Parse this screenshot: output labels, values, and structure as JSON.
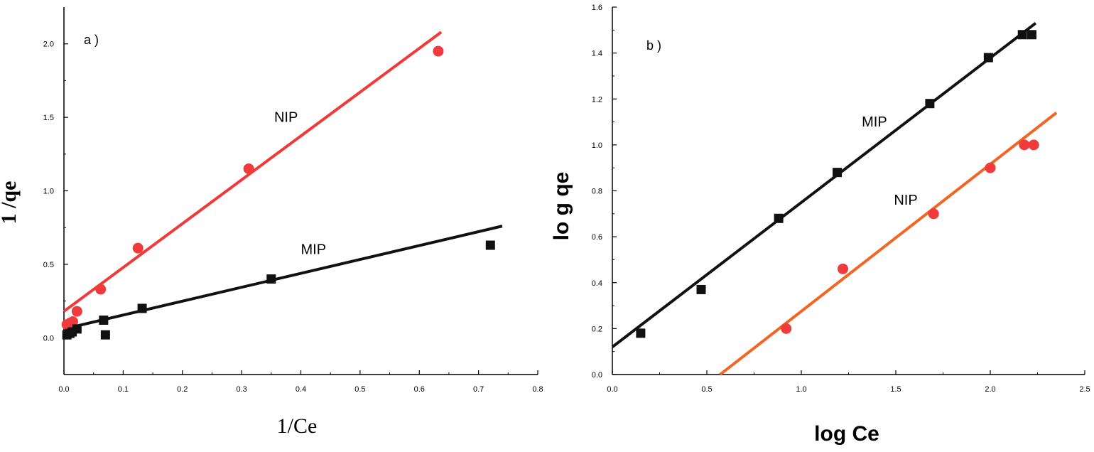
{
  "colors": {
    "black": "#111111",
    "red": "#f03a3a",
    "orange": "#f26522",
    "point_red": "#ef3b3b",
    "axis": "#000000"
  },
  "chart_data": [
    {
      "id": "a",
      "type": "scatter",
      "panel_label": "a )",
      "title": "",
      "xlabel": "1/Ce",
      "ylabel": "1 /qe",
      "xlim": [
        0,
        0.8
      ],
      "ylim": [
        -0.25,
        2.25
      ],
      "x_ticks": [
        0.0,
        0.1,
        0.2,
        0.3,
        0.4,
        0.5,
        0.6,
        0.7,
        0.8
      ],
      "x_tick_labels": [
        "0.0",
        "0.1",
        "0.2",
        "0.3",
        "0.4",
        "0.5",
        "0.6",
        "0.7",
        "0.8"
      ],
      "y_ticks": [
        0.0,
        0.5,
        1.0,
        1.5,
        2.0
      ],
      "y_tick_labels": [
        "0.0",
        "0.5",
        "1.0",
        "1.5",
        "2.0"
      ],
      "series": [
        {
          "name": "NIP",
          "marker": "circle",
          "color": "#ef3b3b",
          "x": [
            0.005,
            0.01,
            0.015,
            0.022,
            0.062,
            0.125,
            0.312,
            0.632
          ],
          "y": [
            0.09,
            0.1,
            0.11,
            0.18,
            0.33,
            0.61,
            1.15,
            1.95
          ],
          "fit": {
            "x": [
              0.0,
              0.637
            ],
            "y": [
              0.18,
              2.08
            ],
            "color": "#f03a3a"
          }
        },
        {
          "name": "MIP",
          "marker": "square",
          "color": "#111111",
          "x": [
            0.005,
            0.01,
            0.014,
            0.022,
            0.067,
            0.07,
            0.132,
            0.35,
            0.72
          ],
          "y": [
            0.02,
            0.03,
            0.04,
            0.06,
            0.12,
            0.02,
            0.2,
            0.4,
            0.63
          ],
          "fit": {
            "x": [
              0.0,
              0.74
            ],
            "y": [
              0.06,
              0.76
            ],
            "color": "#111111"
          }
        }
      ],
      "annotations": [
        {
          "text": "NIP",
          "x": 0.355,
          "y": 1.47
        },
        {
          "text": "MIP",
          "x": 0.4,
          "y": 0.57
        }
      ]
    },
    {
      "id": "b",
      "type": "scatter",
      "panel_label": "b )",
      "title": "",
      "xlabel": "log Ce",
      "ylabel": "lo g qe",
      "xlim": [
        0,
        2.5
      ],
      "ylim": [
        0,
        1.6
      ],
      "x_ticks": [
        0.0,
        0.5,
        1.0,
        1.5,
        2.0,
        2.5
      ],
      "x_tick_labels": [
        "0.0",
        "0.5",
        "1.0",
        "1.5",
        "2.0",
        "2.5"
      ],
      "y_ticks": [
        0.0,
        0.2,
        0.4,
        0.6,
        0.8,
        1.0,
        1.2,
        1.4,
        1.6
      ],
      "y_tick_labels": [
        "0.0",
        "0.2",
        "0.4",
        "0.6",
        "0.8",
        "1.0",
        "1.2",
        "1.4",
        "1.6"
      ],
      "series": [
        {
          "name": "MIP",
          "marker": "square",
          "color": "#111111",
          "x": [
            0.15,
            0.47,
            0.88,
            1.19,
            1.68,
            1.99,
            2.17,
            2.22
          ],
          "y": [
            0.18,
            0.37,
            0.68,
            0.88,
            1.18,
            1.38,
            1.48,
            1.48
          ],
          "fit": {
            "x": [
              0.0,
              2.24
            ],
            "y": [
              0.12,
              1.53
            ],
            "color": "#111111"
          }
        },
        {
          "name": "NIP",
          "marker": "circle",
          "color": "#ef3b3b",
          "x": [
            0.92,
            1.22,
            1.7,
            2.0,
            2.18,
            2.23
          ],
          "y": [
            0.2,
            0.46,
            0.7,
            0.9,
            1.0,
            1.0
          ],
          "fit": {
            "x": [
              0.57,
              2.35
            ],
            "y": [
              0.0,
              1.14
            ],
            "color": "#f26522"
          }
        }
      ],
      "annotations": [
        {
          "text": "MIP",
          "x": 1.32,
          "y": 1.08
        },
        {
          "text": "NIP",
          "x": 1.49,
          "y": 0.74
        }
      ]
    }
  ]
}
